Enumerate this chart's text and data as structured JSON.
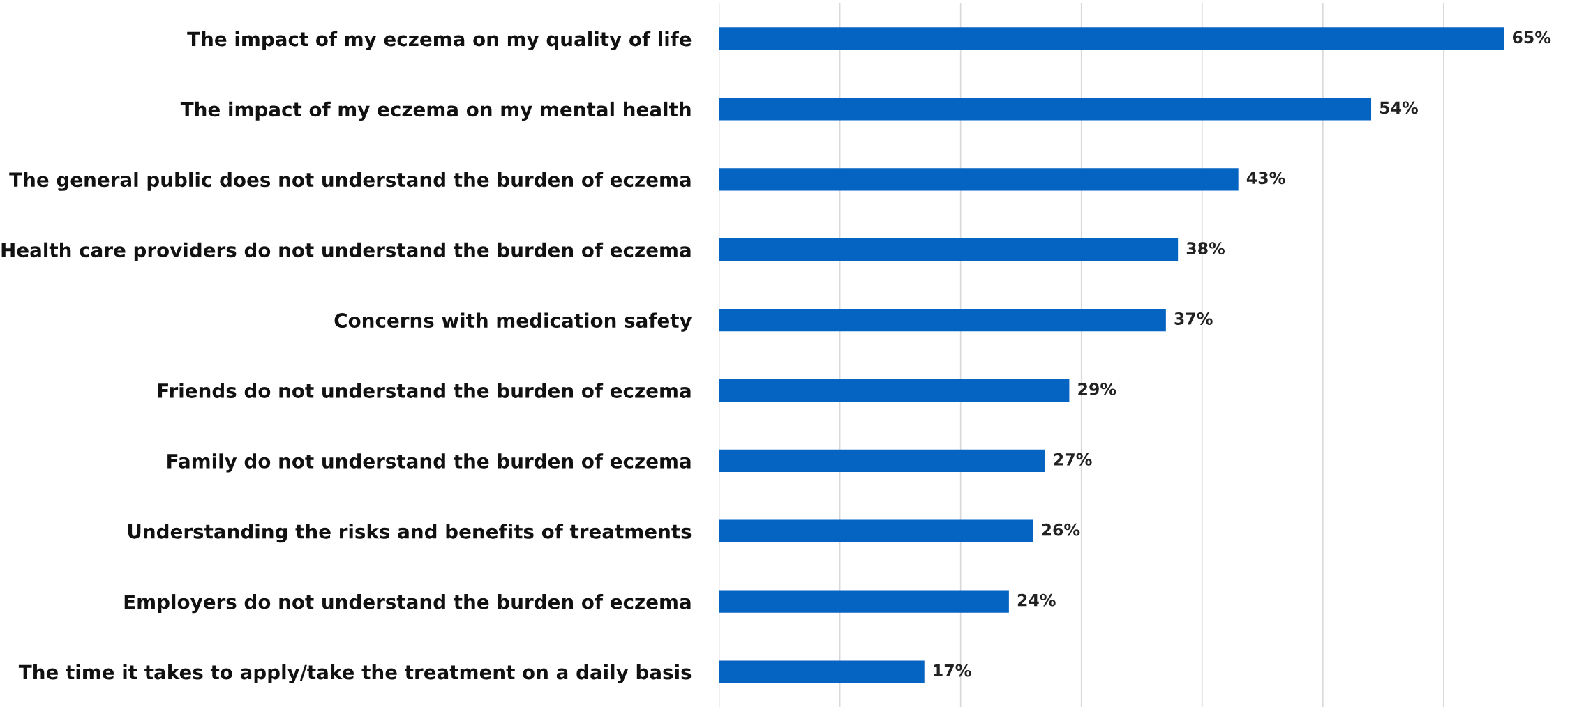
{
  "chart_data": {
    "type": "bar",
    "orientation": "horizontal",
    "categories": [
      "The impact of my eczema on my quality of life",
      "The impact of my eczema on my mental health",
      "The general public does not understand the burden of eczema",
      "Health care providers do not understand the burden of eczema",
      "Concerns with medication safety",
      "Friends do not understand the burden of eczema",
      "Family do not understand the burden of eczema",
      "Understanding the risks and benefits of treatments",
      "Employers do not understand the burden of eczema",
      "The time it takes to apply/take the treatment on a daily basis"
    ],
    "values": [
      65,
      54,
      43,
      38,
      37,
      29,
      27,
      26,
      24,
      17
    ],
    "value_labels": [
      "65%",
      "54%",
      "43%",
      "38%",
      "37%",
      "29%",
      "27%",
      "26%",
      "24%",
      "17%"
    ],
    "color": "#0563c1",
    "xlim": [
      0,
      70
    ],
    "xticks": [
      {
        "value": 0,
        "label": null
      },
      {
        "value": 10,
        "label": null
      },
      {
        "value": 20,
        "label": null
      },
      {
        "value": 30,
        "label": null
      },
      {
        "value": 40,
        "label": null
      },
      {
        "value": 50,
        "label": null
      },
      {
        "value": 60,
        "label": null
      },
      {
        "value": 70,
        "label": null
      }
    ],
    "grid": "x",
    "tick_labels": "y",
    "legend": false
  }
}
